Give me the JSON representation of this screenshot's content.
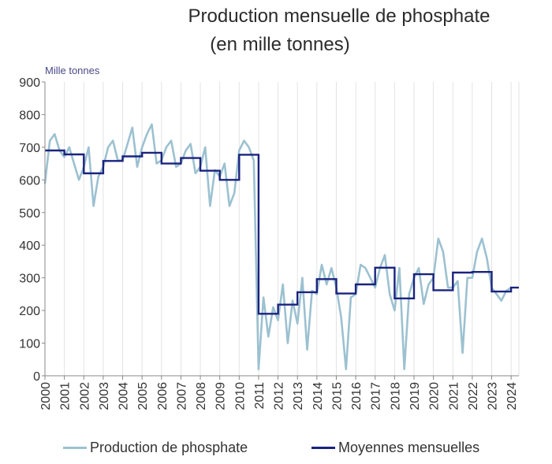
{
  "chart_data": {
    "type": "line",
    "title": "Production mensuelle de phosphate",
    "subtitle": "(en mille tonnes)",
    "ylabel": "Mille tonnes",
    "ylim": [
      0,
      900
    ],
    "y_ticks": [
      "0",
      "100",
      "200",
      "300",
      "400",
      "500",
      "600",
      "700",
      "800",
      "900"
    ],
    "x_ticks": [
      "2000",
      "2001",
      "2002",
      "2003",
      "2004",
      "2005",
      "2006",
      "2007",
      "2008",
      "2009",
      "2010",
      "2011",
      "2012",
      "2013",
      "2014",
      "2015",
      "2016",
      "2017",
      "2018",
      "2019",
      "2020",
      "2021",
      "2022",
      "2023",
      "2024"
    ],
    "grid": "vertical",
    "legend_position": "bottom",
    "series": [
      {
        "name": "Production de phosphate",
        "color": "#9cc1d0",
        "x_start": 2000,
        "step": 0.25,
        "values": [
          590,
          720,
          740,
          690,
          670,
          700,
          650,
          600,
          640,
          700,
          520,
          610,
          640,
          700,
          720,
          660,
          660,
          710,
          760,
          640,
          700,
          740,
          770,
          650,
          660,
          700,
          720,
          640,
          650,
          690,
          710,
          620,
          640,
          700,
          520,
          630,
          610,
          650,
          520,
          560,
          690,
          720,
          700,
          660,
          20,
          240,
          120,
          210,
          170,
          280,
          100,
          230,
          160,
          300,
          80,
          260,
          250,
          340,
          280,
          330,
          270,
          180,
          20,
          240,
          250,
          340,
          330,
          300,
          270,
          330,
          370,
          250,
          200,
          330,
          20,
          250,
          300,
          330,
          220,
          280,
          300,
          420,
          380,
          270,
          270,
          290,
          70,
          300,
          300,
          380,
          420,
          360,
          270,
          250,
          230,
          260,
          270
        ]
      },
      {
        "name": "Moyennes mensuelles",
        "color": "#1a237e",
        "x_start": 2000,
        "step": 1,
        "values": [
          690,
          678,
          620,
          658,
          672,
          683,
          650,
          667,
          628,
          600,
          677,
          190,
          218,
          256,
          296,
          252,
          280,
          331,
          237,
          311,
          262,
          316,
          318,
          258,
          270
        ]
      }
    ]
  }
}
